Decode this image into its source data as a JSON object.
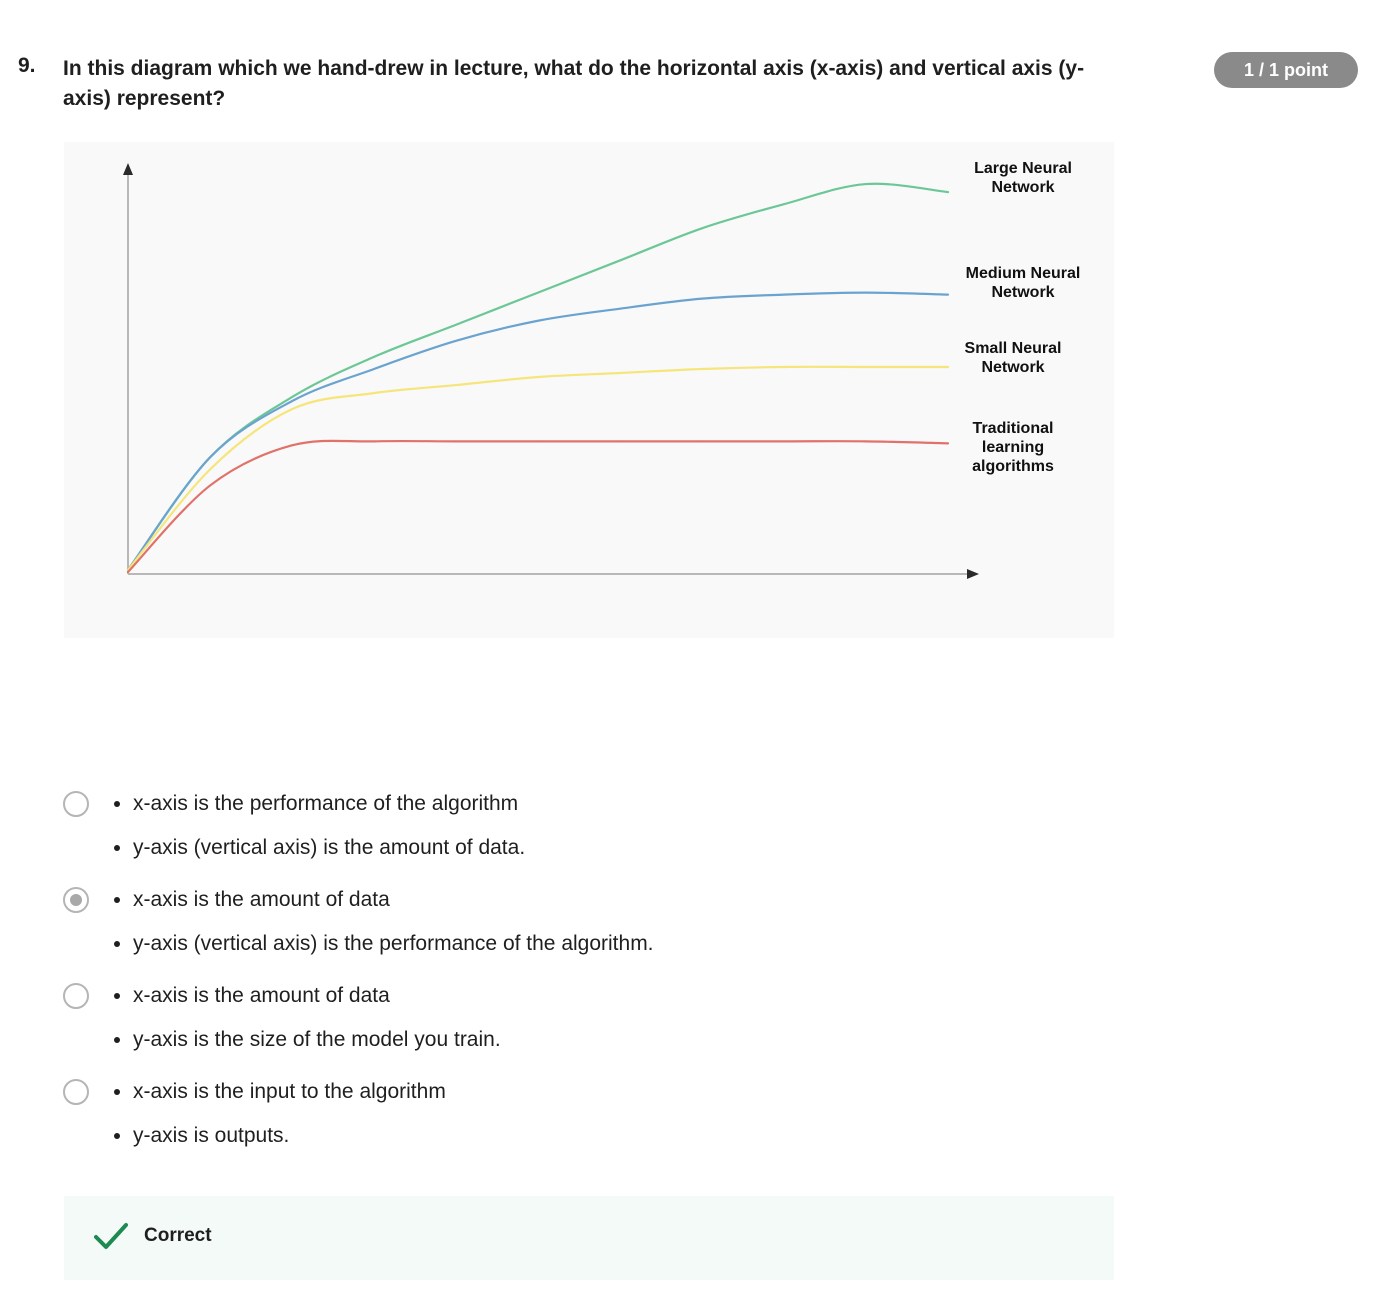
{
  "question": {
    "number": "9.",
    "text": "In this diagram which we hand-drew in lecture, what do the horizontal axis (x-axis) and vertical axis (y-axis) represent?",
    "points_badge": "1 / 1 point"
  },
  "chart_data": {
    "type": "line",
    "title": "",
    "xlabel": "",
    "ylabel": "",
    "x": [
      0,
      1,
      2,
      3,
      4,
      5,
      6,
      7,
      8,
      9,
      10
    ],
    "xlim": [
      0,
      10
    ],
    "ylim": [
      0,
      10
    ],
    "grid": false,
    "series": [
      {
        "name": "Large Neural Network",
        "color": "#6cc796",
        "values": [
          0.1,
          2.9,
          4.4,
          5.4,
          6.2,
          7.0,
          7.8,
          8.6,
          9.2,
          9.7,
          9.5
        ]
      },
      {
        "name": "Medium Neural Network",
        "color": "#6aa3cf",
        "values": [
          0.1,
          2.9,
          4.3,
          5.1,
          5.8,
          6.3,
          6.6,
          6.85,
          6.95,
          7.0,
          6.95
        ]
      },
      {
        "name": "Small Neural Network",
        "color": "#f5e57a",
        "values": [
          0.1,
          2.6,
          4.1,
          4.5,
          4.7,
          4.9,
          5.0,
          5.1,
          5.15,
          5.15,
          5.15
        ]
      },
      {
        "name": "Traditional learning algorithms",
        "color": "#e0726a",
        "values": [
          0.05,
          2.2,
          3.2,
          3.3,
          3.3,
          3.3,
          3.3,
          3.3,
          3.3,
          3.3,
          3.25
        ]
      }
    ],
    "labels": {
      "large": "Large Neural\nNetwork",
      "medium": "Medium Neural\nNetwork",
      "small": "Small Neural\nNetwork",
      "traditional": "Traditional\nlearning\nalgorithms"
    }
  },
  "options": [
    {
      "selected": false,
      "bullets": [
        "x-axis is the performance of the algorithm",
        "y-axis (vertical axis) is the amount of data."
      ]
    },
    {
      "selected": true,
      "bullets": [
        "x-axis is the amount of data",
        "y-axis (vertical axis) is the performance of the algorithm."
      ]
    },
    {
      "selected": false,
      "bullets": [
        "x-axis is the amount of data",
        "y-axis is the size of the model you train."
      ]
    },
    {
      "selected": false,
      "bullets": [
        "x-axis is the input to the algorithm",
        "y-axis is outputs."
      ]
    }
  ],
  "feedback": {
    "status": "Correct",
    "icon": "checkmark-icon",
    "color": "#1e8a52"
  }
}
